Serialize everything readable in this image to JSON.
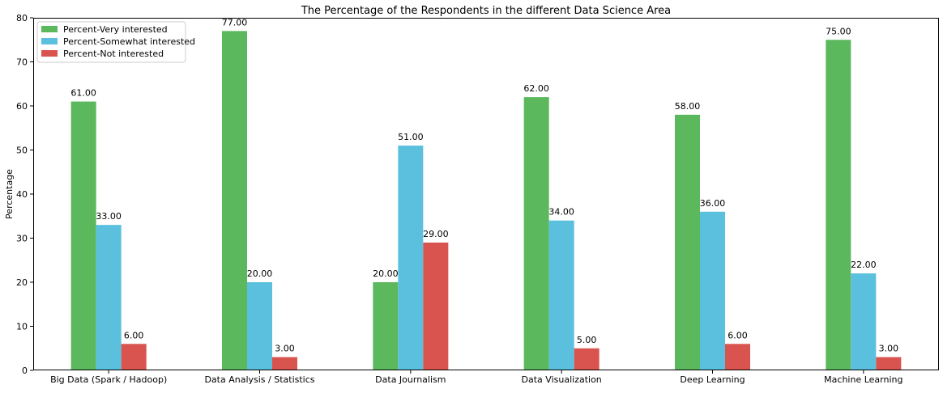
{
  "chart_data": {
    "type": "bar",
    "title": "The Percentage of the Respondents in the different Data Science Area",
    "xlabel": "",
    "ylabel": "Percentage",
    "ylim": [
      0,
      80
    ],
    "yticks": [
      0,
      10,
      20,
      30,
      40,
      50,
      60,
      70,
      80
    ],
    "grid": false,
    "legend_position": "top-left",
    "value_label_format": "2 decimals",
    "categories": [
      "Big Data (Spark / Hadoop)",
      "Data Analysis / Statistics",
      "Data Journalism",
      "Data Visualization",
      "Deep Learning",
      "Machine Learning"
    ],
    "series": [
      {
        "name": "Percent-Very interested",
        "color": "#5cb85c",
        "values": [
          61,
          77,
          20,
          62,
          58,
          75
        ]
      },
      {
        "name": "Percent-Somewhat interested",
        "color": "#5bc0de",
        "values": [
          33,
          20,
          51,
          34,
          36,
          22
        ]
      },
      {
        "name": "Percent-Not interested",
        "color": "#d9534f",
        "values": [
          6,
          3,
          29,
          5,
          6,
          3
        ]
      }
    ]
  }
}
